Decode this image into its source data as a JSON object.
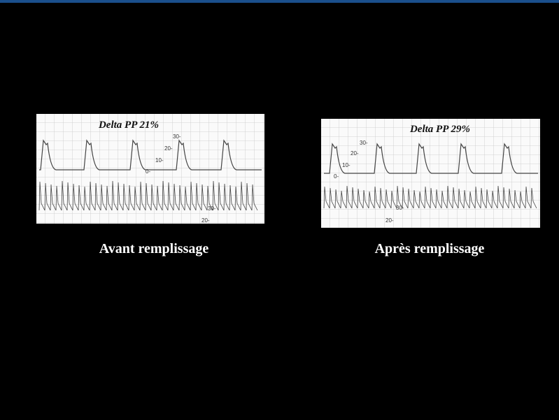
{
  "panels": [
    {
      "title": "Delta PP 21%",
      "caption": "Avant remplissage",
      "scale_labels": [
        "30-",
        "20-",
        "10-",
        "0-",
        "30-",
        "20-"
      ]
    },
    {
      "title": "Delta PP 29%",
      "caption": "Après remplissage",
      "scale_labels": [
        "30-",
        "20-",
        "10-",
        "0-",
        "30-",
        "20-"
      ]
    }
  ]
}
